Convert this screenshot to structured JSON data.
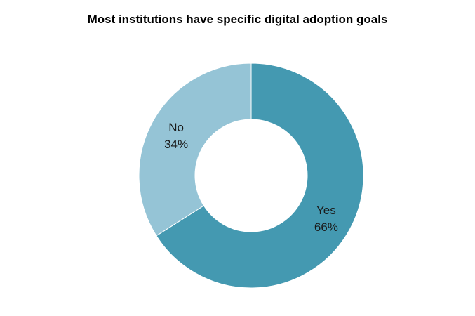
{
  "chart_data": {
    "type": "pie",
    "title": "Most institutions have specific digital adoption goals",
    "donut": true,
    "slices": [
      {
        "label": "Yes",
        "value": 66,
        "display": "66%",
        "color": "#4499b1"
      },
      {
        "label": "No",
        "value": 34,
        "display": "34%",
        "color": "#95c4d6"
      }
    ],
    "legend": "none"
  }
}
